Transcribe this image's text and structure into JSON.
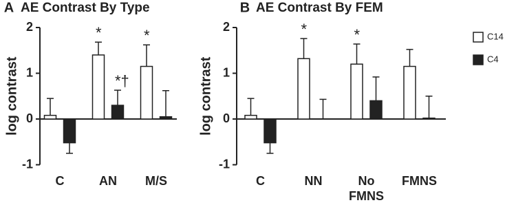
{
  "chart_data": [
    {
      "type": "bar",
      "panel_label": "A",
      "title": "AE Contrast By Type",
      "y_label": "log contrast",
      "categories": [
        "C",
        "AN",
        "M/S"
      ],
      "series": [
        {
          "name": "C14",
          "color": "#ffffff",
          "values": [
            0.08,
            1.4,
            1.15
          ],
          "errors": [
            0.37,
            0.28,
            0.47
          ]
        },
        {
          "name": "C4",
          "color": "#222222",
          "values": [
            -0.52,
            0.3,
            0.05
          ],
          "errors": [
            0.23,
            0.33,
            0.57
          ]
        }
      ],
      "annotations": [
        {
          "text": "*",
          "category": "AN",
          "series": "C14"
        },
        {
          "text": "*",
          "category": "M/S",
          "series": "C14"
        },
        {
          "text": "*†",
          "category": "AN",
          "series": "C4"
        }
      ],
      "ylim": [
        -1,
        2
      ],
      "yticks": [
        -1,
        0,
        1,
        2
      ],
      "legend": "right"
    },
    {
      "type": "bar",
      "panel_label": "B",
      "title": "AE Contrast By FEM",
      "y_label": "log contrast",
      "categories": [
        "C",
        "NN",
        "No\nFMNS",
        "FMNS"
      ],
      "series": [
        {
          "color": "#ffffff",
          "values": [
            0.08,
            1.32,
            1.2,
            1.15
          ],
          "errors": [
            0.37,
            0.44,
            0.44,
            0.37
          ]
        },
        {
          "color": "#222222",
          "values": [
            -0.52,
            0,
            0.4,
            0.02
          ],
          "errors": [
            0.23,
            0.43,
            0.52,
            0.48
          ]
        }
      ],
      "annotations": [
        {
          "text": "*",
          "category": "NN",
          "series": 0
        },
        {
          "text": "*",
          "category": "No\nFMNS",
          "series": 0
        }
      ],
      "ylim": [
        -1,
        2
      ],
      "yticks": [
        -1,
        0,
        1,
        2
      ]
    }
  ]
}
